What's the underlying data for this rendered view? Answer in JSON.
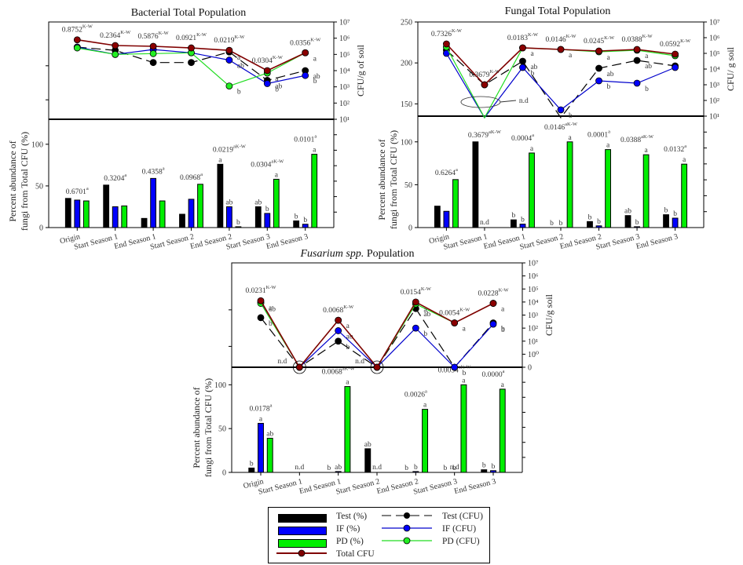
{
  "figure": {
    "legend": {
      "bars": [
        {
          "label": "Test (%)",
          "color": "#000000"
        },
        {
          "label": "IF (%)",
          "color": "#0000ff"
        },
        {
          "label": "PD (%)",
          "color": "#00ee00"
        }
      ],
      "lines": [
        {
          "label": "Test (CFU)",
          "color": "#000000",
          "style": "dashed"
        },
        {
          "label": "IF (CFU)",
          "color": "#0000cc",
          "style": "solid"
        },
        {
          "label": "PD (CFU)",
          "color": "#22dd22",
          "style": "solid"
        },
        {
          "label": "Total CFU",
          "color": "#800000",
          "style": "solid"
        }
      ]
    }
  },
  "chart_data": [
    {
      "id": "bacterial",
      "type": "bar+line",
      "title": "Bacterial Total Population",
      "title_italic": "",
      "categories": [
        "Origin",
        "Start Season 1",
        "End Season 1",
        "Start Season 2",
        "End Season 2",
        "Start Season 3",
        "End Season 3"
      ],
      "left_ylabel": [
        "Percent abundance of",
        "fungi from Total CFU (%)"
      ],
      "right_ylabel": "CFU/g of soil",
      "bar_ylim": [
        0,
        130
      ],
      "bar_yticks": [
        "0",
        "50",
        "100"
      ],
      "bar_ytick_values": [
        0,
        50,
        100
      ],
      "cfu_log_range": [
        1,
        7
      ],
      "cfu_ticks": [
        "10¹",
        "10²",
        "10³",
        "10⁴",
        "10⁵",
        "10⁶",
        "10⁷"
      ],
      "cfu_tick_values": [
        1,
        2,
        3,
        4,
        5,
        6,
        7
      ],
      "upper_left_ticks": [],
      "bar_series": [
        {
          "name": "Test (%)",
          "values": [
            35,
            51,
            11,
            16,
            76,
            25,
            8
          ],
          "letters": [
            "",
            "",
            "",
            "",
            "a",
            "ab",
            "b"
          ]
        },
        {
          "name": "IF (%)",
          "values": [
            33,
            25,
            59,
            34,
            25,
            17,
            4
          ],
          "letters": [
            "",
            "",
            "",
            "",
            "ab",
            "b",
            "b"
          ]
        },
        {
          "name": "PD (%)",
          "values": [
            32,
            26,
            32,
            52,
            1,
            58,
            88
          ],
          "letters": [
            "",
            "",
            "",
            "",
            "b",
            "a",
            "a"
          ]
        }
      ],
      "bar_pvalues": [
        "0.6701",
        "0.3204",
        "0.4358",
        "0.0968",
        "0.0219",
        "0.0304",
        "0.0101"
      ],
      "bar_pvalue_sup": [
        "a",
        "a",
        "a",
        "a",
        "aK-W",
        "aK-W",
        "a"
      ],
      "cfu_series": [
        {
          "name": "Total CFU",
          "log_values": [
            5.9,
            5.55,
            5.5,
            5.4,
            5.25,
            4.0,
            5.1
          ]
        },
        {
          "name": "Test (CFU)",
          "log_values": [
            5.45,
            5.25,
            4.5,
            4.5,
            5.15,
            3.4,
            4.0
          ],
          "letters": [
            "",
            "",
            "",
            "",
            "a",
            "ab",
            "ab"
          ]
        },
        {
          "name": "IF (CFU)",
          "log_values": [
            5.45,
            5.0,
            5.3,
            5.1,
            4.65,
            3.2,
            3.7
          ],
          "letters": [
            "",
            "",
            "",
            "",
            "ab",
            "b",
            "b"
          ]
        },
        {
          "name": "PD (CFU)",
          "log_values": [
            5.4,
            5.0,
            5.05,
            5.1,
            3.05,
            3.85,
            5.1
          ],
          "letters": [
            "",
            "",
            "",
            "",
            "b",
            "a",
            "a"
          ]
        }
      ],
      "cfu_pvalues": [
        "0.8752",
        "0.2364",
        "0.5876",
        "0.0921",
        "0.0219",
        "0.0304",
        "0.0356"
      ],
      "cfu_pvalue_sup": "K-W",
      "notes": []
    },
    {
      "id": "fungal",
      "type": "bar+line",
      "title": "Fungal Total Population",
      "title_italic": "",
      "categories": [
        "Origin",
        "Start Season 1",
        "End Season 1",
        "Start Season 2",
        "End Season 2",
        "Start Season 3",
        "End Season 3"
      ],
      "left_ylabel": [
        "Percent abundance of",
        "fungi from Total CFU (%)"
      ],
      "right_ylabel": "CFU/ g soil",
      "bar_ylim": [
        0,
        130
      ],
      "bar_yticks": [
        "0",
        "50",
        "100"
      ],
      "bar_ytick_values": [
        0,
        50,
        100
      ],
      "cfu_log_range": [
        1,
        7
      ],
      "cfu_ticks": [
        "10¹",
        "10²",
        "10³",
        "10⁴",
        "10⁵",
        "10⁶",
        "10⁷"
      ],
      "cfu_tick_values": [
        1,
        2,
        3,
        4,
        5,
        6,
        7
      ],
      "upper_left_ticks": [
        "150",
        "200",
        "250"
      ],
      "upper_left_range": [
        135,
        250
      ],
      "upper_left_tick_values": [
        150,
        200,
        250
      ],
      "bar_series": [
        {
          "name": "Test (%)",
          "values": [
            25,
            100,
            9,
            0,
            7,
            14,
            15
          ],
          "letters": [
            "",
            "",
            "b",
            "b",
            "b",
            "ab",
            "b"
          ]
        },
        {
          "name": "IF (%)",
          "values": [
            19,
            0,
            4,
            0,
            2,
            1,
            11
          ],
          "letters": [
            "",
            "",
            "b",
            "b",
            "b",
            "b",
            "b"
          ]
        },
        {
          "name": "PD (%)",
          "values": [
            56,
            0,
            87,
            100,
            91,
            85,
            74
          ],
          "letters": [
            "",
            "",
            "a",
            "a",
            "a",
            "a",
            "a"
          ]
        }
      ],
      "bar_nd": [
        "",
        "n.d",
        "",
        "",
        "",
        "",
        ""
      ],
      "bar_pvalues": [
        "0.6264",
        "0.3679",
        "0.0004",
        "0.0146",
        "0.0001",
        "0.0388",
        "0.0132"
      ],
      "bar_pvalue_sup": [
        "a",
        "aK-W",
        "a",
        "aK-W",
        "a",
        "aK-W",
        "a"
      ],
      "cfu_series": [
        {
          "name": "Total CFU",
          "log_values": [
            5.6,
            3.0,
            5.35,
            5.25,
            5.15,
            5.25,
            4.95
          ]
        },
        {
          "name": "Test (CFU)",
          "log_values": [
            5.2,
            3.0,
            4.5,
            null,
            4.05,
            4.55,
            4.2
          ],
          "letters": [
            "",
            "",
            "ab",
            "",
            "ab",
            "ab",
            ""
          ]
        },
        {
          "name": "IF (CFU)",
          "log_values": [
            5.0,
            null,
            4.1,
            1.4,
            3.25,
            3.1,
            4.1
          ],
          "letters": [
            "",
            "",
            "b",
            "b",
            "b",
            "b",
            ""
          ]
        },
        {
          "name": "PD (CFU)",
          "log_values": [
            5.4,
            null,
            5.35,
            5.25,
            5.1,
            5.2,
            4.85
          ],
          "letters": [
            "",
            "",
            "a",
            "a",
            "a",
            "a",
            ""
          ]
        }
      ],
      "cfu_pvalues": [
        "0.7326",
        "0.3679",
        "0.0183",
        "0.0146",
        "0.0245",
        "0.0388",
        "0.0592"
      ],
      "cfu_pvalue_sup": "K-W",
      "notes": [
        "n.d"
      ]
    },
    {
      "id": "fusarium",
      "type": "bar+line",
      "title": " Population",
      "title_italic": "Fusarium spp.",
      "categories": [
        "Origin",
        "Start Season 1",
        "End Season 1",
        "Start Season 2",
        "End Season  2",
        "Start Season 3",
        "End Season 3"
      ],
      "left_ylabel": [
        "Percent abundance of",
        "fungi from Total CFU (%)"
      ],
      "right_ylabel": "CFU/g soil",
      "bar_ylim": [
        0,
        120
      ],
      "bar_yticks": [
        "0",
        "50",
        "100"
      ],
      "bar_ytick_values": [
        0,
        50,
        100
      ],
      "cfu_log_range": [
        -1,
        7
      ],
      "cfu_ticks": [
        "0",
        "10⁰",
        "10¹",
        "10²",
        "10³",
        "10⁴",
        "10⁵",
        "10⁶",
        "10⁷"
      ],
      "cfu_tick_values": [
        -1,
        0,
        1,
        2,
        3,
        4,
        5,
        6,
        7
      ],
      "upper_left_ticks": [],
      "bar_series": [
        {
          "name": "Test (%)",
          "values": [
            5,
            0,
            0,
            27,
            0,
            0,
            3
          ],
          "letters": [
            "b",
            "",
            "b",
            "ab",
            "b",
            "b",
            "b"
          ]
        },
        {
          "name": "IF (%)",
          "values": [
            56,
            0,
            1,
            0,
            1,
            0,
            2
          ],
          "letters": [
            "a",
            "",
            "ab",
            "",
            "b",
            "b",
            "b"
          ]
        },
        {
          "name": "PD (%)",
          "values": [
            39,
            0,
            98,
            0,
            72,
            100,
            95
          ],
          "letters": [
            "ab",
            "",
            "a",
            "",
            "a",
            "a",
            "a"
          ]
        }
      ],
      "bar_nd": [
        "",
        "n.d",
        "",
        "n.d",
        "",
        "n.d",
        ""
      ],
      "bar_pvalues": [
        "0.0178",
        "",
        "0.0068",
        "",
        "0.0026",
        "0.0054",
        "0.0000"
      ],
      "bar_pvalue_sup": [
        "a",
        "",
        "aK-W",
        "",
        "a",
        "aK-W",
        "a"
      ],
      "cfu_series": [
        {
          "name": "Total CFU",
          "log_values": [
            4.1,
            -1,
            2.6,
            -1,
            4.0,
            2.4,
            3.9
          ]
        },
        {
          "name": "Test (CFU)",
          "log_values": [
            2.8,
            -1,
            1.0,
            -1,
            3.5,
            -1,
            2.4
          ],
          "letters": [
            "b",
            "",
            "b",
            "",
            "ab",
            "b",
            "b"
          ]
        },
        {
          "name": "IF (CFU)",
          "log_values": [
            4.0,
            -1,
            1.8,
            -1,
            2.0,
            -1,
            2.3
          ],
          "letters": [
            "a",
            "",
            "ab",
            "",
            "b",
            "",
            "b"
          ]
        },
        {
          "name": "PD (CFU)",
          "log_values": [
            3.9,
            -1,
            2.6,
            -1,
            3.85,
            2.4,
            3.9
          ],
          "letters": [
            "ab",
            "",
            "a",
            "",
            "a",
            "a",
            "a"
          ]
        }
      ],
      "cfu_pvalues": [
        "0.0231",
        "",
        "0.0068",
        "",
        "0.0154",
        "0.0054",
        "0.0228"
      ],
      "cfu_pvalue_sup": "K-W",
      "notes": [
        "n.d",
        "n.d",
        "n.d"
      ]
    }
  ]
}
